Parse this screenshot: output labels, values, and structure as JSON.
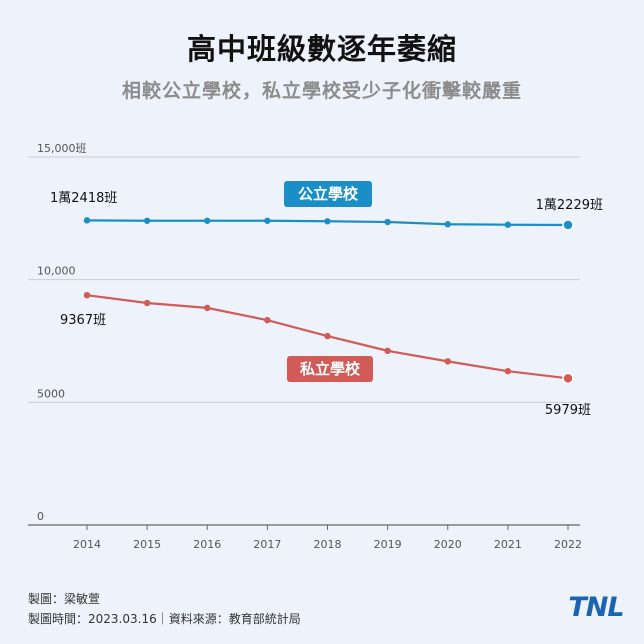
{
  "header": {
    "title": "高中班級數逐年萎縮",
    "subtitle": "相較公立學校，私立學校受少子化衝擊較嚴重"
  },
  "chart_data": {
    "type": "line",
    "x": [
      2014,
      2015,
      2016,
      2017,
      2018,
      2019,
      2020,
      2021,
      2022
    ],
    "ylim": [
      0,
      15000
    ],
    "yticks": [
      {
        "value": 0,
        "label": "0"
      },
      {
        "value": 5000,
        "label": "5000"
      },
      {
        "value": 10000,
        "label": "10,000"
      },
      {
        "value": 15000,
        "label": "15,000班"
      }
    ],
    "grid": true,
    "series": [
      {
        "name": "公立學校",
        "color": "#1b8ec8",
        "values": [
          12418,
          12400,
          12400,
          12400,
          12380,
          12350,
          12260,
          12240,
          12229
        ],
        "start_label": "1萬2418班",
        "end_label": "1萬2229班"
      },
      {
        "name": "私立學校",
        "color": "#d15b57",
        "values": [
          9367,
          9050,
          8850,
          8350,
          7700,
          7100,
          6670,
          6270,
          5979
        ],
        "start_label": "9367班",
        "end_label": "5979班"
      }
    ]
  },
  "footer": {
    "author": "製圖：梁敏萱",
    "meta": "製圖時間：2023.03.16｜資料來源：教育部統計局"
  },
  "logo": {
    "text": "TNL",
    "color": "#1a64b4"
  }
}
